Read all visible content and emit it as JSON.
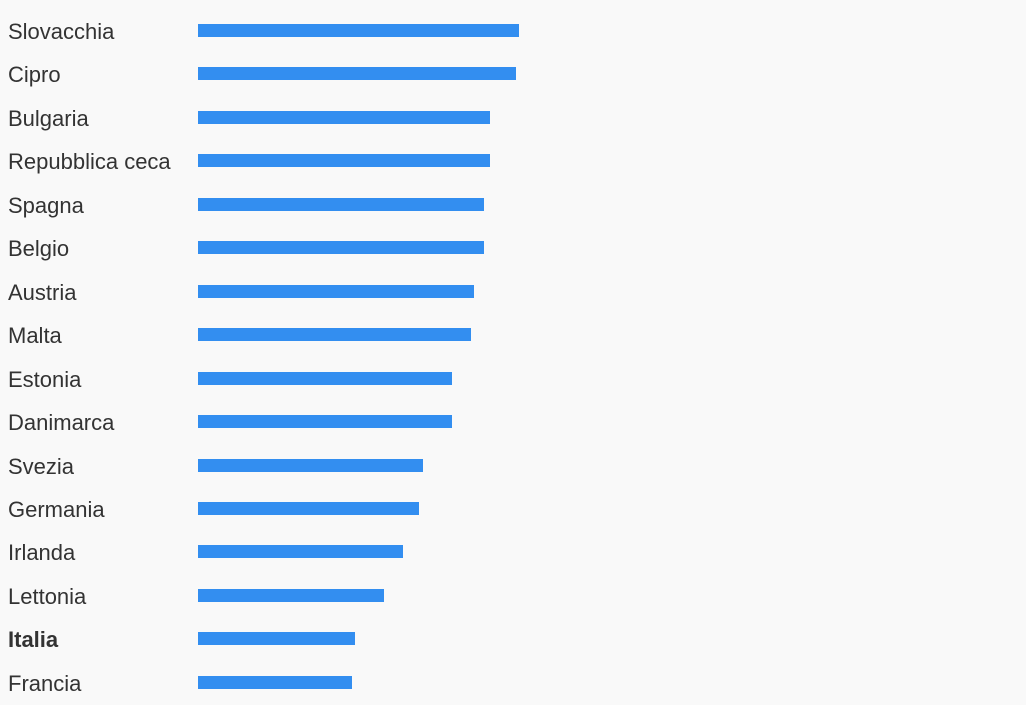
{
  "chart_data": {
    "type": "bar",
    "orientation": "horizontal",
    "categories": [
      "Slovacchia",
      "Cipro",
      "Bulgaria",
      "Repubblica ceca",
      "Spagna",
      "Belgio",
      "Austria",
      "Malta",
      "Estonia",
      "Danimarca",
      "Svezia",
      "Germania",
      "Irlanda",
      "Lettonia",
      "Italia",
      "Francia"
    ],
    "values": [
      1.0,
      0.99,
      0.91,
      0.91,
      0.89,
      0.89,
      0.86,
      0.85,
      0.79,
      0.79,
      0.7,
      0.69,
      0.64,
      0.58,
      0.49,
      0.48
    ],
    "value_note": "relative to longest bar; no axis printed",
    "highlighted": "Italia",
    "bar_color": "#338ef0",
    "grid": false,
    "legend": "none"
  }
}
